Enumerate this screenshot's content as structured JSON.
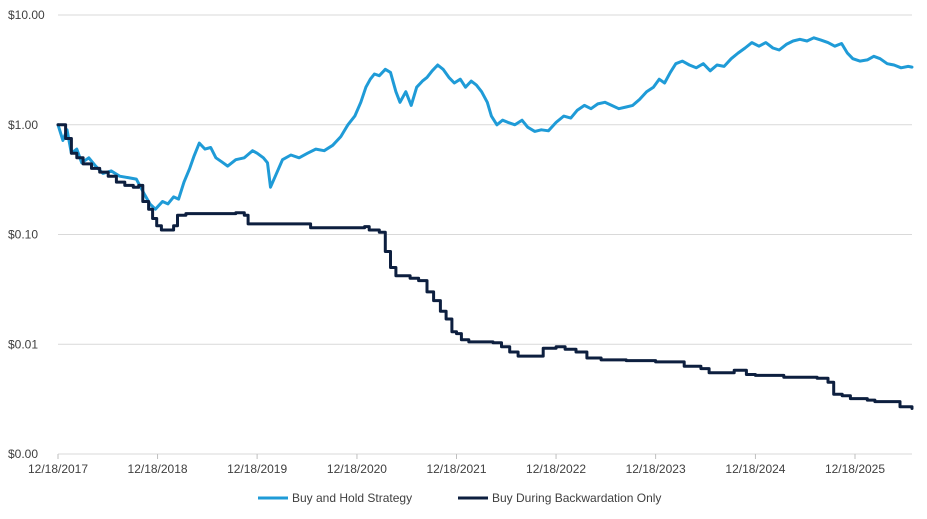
{
  "chart_data": {
    "type": "line",
    "yscale": "log",
    "ylim": [
      0.001,
      10
    ],
    "xlim": [
      "2017-12-18",
      "2026-07-15"
    ],
    "grid": true,
    "legend_position": "bottom-center",
    "y_ticks": [
      {
        "value": 10,
        "label": "$10.00"
      },
      {
        "value": 1,
        "label": "$1.00"
      },
      {
        "value": 0.1,
        "label": "$0.10"
      },
      {
        "value": 0.01,
        "label": "$0.01"
      },
      {
        "value": 0.001,
        "label": "$0.00"
      }
    ],
    "x_ticks": [
      {
        "value": "2017-12-18",
        "label": "12/18/2017"
      },
      {
        "value": "2018-12-18",
        "label": "12/18/2018"
      },
      {
        "value": "2019-12-18",
        "label": "12/18/2019"
      },
      {
        "value": "2020-12-18",
        "label": "12/18/2020"
      },
      {
        "value": "2021-12-18",
        "label": "12/18/2021"
      },
      {
        "value": "2022-12-18",
        "label": "12/18/2022"
      },
      {
        "value": "2023-12-18",
        "label": "12/18/2023"
      },
      {
        "value": "2024-12-18",
        "label": "12/18/2024"
      },
      {
        "value": "2025-12-18",
        "label": "12/18/2025"
      }
    ],
    "series": [
      {
        "name": "Buy and Hold Strategy",
        "color": "#1f9bd7",
        "points": [
          [
            "2017-12-18",
            1.0
          ],
          [
            "2018-01-05",
            0.72
          ],
          [
            "2018-01-20",
            0.9
          ],
          [
            "2018-02-05",
            0.55
          ],
          [
            "2018-02-25",
            0.6
          ],
          [
            "2018-03-15",
            0.45
          ],
          [
            "2018-04-10",
            0.5
          ],
          [
            "2018-05-05",
            0.42
          ],
          [
            "2018-06-01",
            0.36
          ],
          [
            "2018-07-01",
            0.38
          ],
          [
            "2018-08-01",
            0.34
          ],
          [
            "2018-09-01",
            0.33
          ],
          [
            "2018-10-01",
            0.32
          ],
          [
            "2018-11-01",
            0.23
          ],
          [
            "2018-11-20",
            0.19
          ],
          [
            "2018-12-10",
            0.17
          ],
          [
            "2019-01-05",
            0.2
          ],
          [
            "2019-01-25",
            0.19
          ],
          [
            "2019-02-15",
            0.22
          ],
          [
            "2019-03-05",
            0.21
          ],
          [
            "2019-03-25",
            0.3
          ],
          [
            "2019-04-15",
            0.4
          ],
          [
            "2019-05-01",
            0.52
          ],
          [
            "2019-05-20",
            0.68
          ],
          [
            "2019-06-10",
            0.6
          ],
          [
            "2019-07-01",
            0.62
          ],
          [
            "2019-07-20",
            0.5
          ],
          [
            "2019-08-10",
            0.46
          ],
          [
            "2019-09-01",
            0.42
          ],
          [
            "2019-10-01",
            0.48
          ],
          [
            "2019-11-01",
            0.5
          ],
          [
            "2019-12-01",
            0.58
          ],
          [
            "2019-12-18",
            0.55
          ],
          [
            "2020-01-10",
            0.5
          ],
          [
            "2020-01-25",
            0.45
          ],
          [
            "2020-02-05",
            0.27
          ],
          [
            "2020-02-25",
            0.35
          ],
          [
            "2020-03-20",
            0.48
          ],
          [
            "2020-04-20",
            0.53
          ],
          [
            "2020-05-20",
            0.5
          ],
          [
            "2020-06-20",
            0.55
          ],
          [
            "2020-07-20",
            0.6
          ],
          [
            "2020-08-20",
            0.58
          ],
          [
            "2020-09-20",
            0.65
          ],
          [
            "2020-10-20",
            0.78
          ],
          [
            "2020-11-15",
            1.0
          ],
          [
            "2020-12-10",
            1.2
          ],
          [
            "2021-01-01",
            1.6
          ],
          [
            "2021-01-20",
            2.2
          ],
          [
            "2021-02-05",
            2.6
          ],
          [
            "2021-02-20",
            2.9
          ],
          [
            "2021-03-10",
            2.8
          ],
          [
            "2021-04-01",
            3.2
          ],
          [
            "2021-04-20",
            3.0
          ],
          [
            "2021-05-10",
            2.0
          ],
          [
            "2021-05-25",
            1.6
          ],
          [
            "2021-06-15",
            2.0
          ],
          [
            "2021-07-05",
            1.5
          ],
          [
            "2021-07-25",
            2.2
          ],
          [
            "2021-08-15",
            2.5
          ],
          [
            "2021-09-01",
            2.7
          ],
          [
            "2021-09-20",
            3.1
          ],
          [
            "2021-10-10",
            3.5
          ],
          [
            "2021-10-30",
            3.2
          ],
          [
            "2021-11-20",
            2.7
          ],
          [
            "2021-12-10",
            2.4
          ],
          [
            "2022-01-01",
            2.6
          ],
          [
            "2022-01-20",
            2.2
          ],
          [
            "2022-02-10",
            2.5
          ],
          [
            "2022-03-01",
            2.3
          ],
          [
            "2022-03-20",
            2.0
          ],
          [
            "2022-04-10",
            1.6
          ],
          [
            "2022-04-25",
            1.2
          ],
          [
            "2022-05-15",
            1.0
          ],
          [
            "2022-06-05",
            1.1
          ],
          [
            "2022-06-25",
            1.05
          ],
          [
            "2022-07-20",
            1.0
          ],
          [
            "2022-08-15",
            1.1
          ],
          [
            "2022-09-05",
            0.95
          ],
          [
            "2022-10-01",
            0.87
          ],
          [
            "2022-10-25",
            0.9
          ],
          [
            "2022-11-20",
            0.88
          ],
          [
            "2022-12-18",
            1.05
          ],
          [
            "2023-01-15",
            1.2
          ],
          [
            "2023-02-10",
            1.15
          ],
          [
            "2023-03-05",
            1.35
          ],
          [
            "2023-04-01",
            1.5
          ],
          [
            "2023-04-25",
            1.4
          ],
          [
            "2023-05-20",
            1.55
          ],
          [
            "2023-06-15",
            1.6
          ],
          [
            "2023-07-10",
            1.5
          ],
          [
            "2023-08-05",
            1.4
          ],
          [
            "2023-09-01",
            1.45
          ],
          [
            "2023-09-25",
            1.5
          ],
          [
            "2023-10-20",
            1.7
          ],
          [
            "2023-11-15",
            2.0
          ],
          [
            "2023-12-10",
            2.2
          ],
          [
            "2023-12-31",
            2.6
          ],
          [
            "2024-01-20",
            2.4
          ],
          [
            "2024-02-10",
            3.0
          ],
          [
            "2024-03-01",
            3.6
          ],
          [
            "2024-03-25",
            3.8
          ],
          [
            "2024-04-20",
            3.5
          ],
          [
            "2024-05-15",
            3.3
          ],
          [
            "2024-06-10",
            3.6
          ],
          [
            "2024-07-05",
            3.1
          ],
          [
            "2024-07-30",
            3.5
          ],
          [
            "2024-08-25",
            3.4
          ],
          [
            "2024-09-20",
            4.0
          ],
          [
            "2024-10-15",
            4.5
          ],
          [
            "2024-11-10",
            5.0
          ],
          [
            "2024-12-05",
            5.6
          ],
          [
            "2024-12-31",
            5.2
          ],
          [
            "2025-01-25",
            5.6
          ],
          [
            "2025-02-20",
            5.0
          ],
          [
            "2025-03-15",
            4.8
          ],
          [
            "2025-04-10",
            5.4
          ],
          [
            "2025-05-05",
            5.8
          ],
          [
            "2025-05-30",
            6.0
          ],
          [
            "2025-06-25",
            5.8
          ],
          [
            "2025-07-20",
            6.2
          ],
          [
            "2025-08-15",
            5.9
          ],
          [
            "2025-09-10",
            5.6
          ],
          [
            "2025-10-05",
            5.2
          ],
          [
            "2025-10-30",
            5.5
          ],
          [
            "2025-11-20",
            4.5
          ],
          [
            "2025-12-10",
            4.0
          ],
          [
            "2026-01-05",
            3.8
          ],
          [
            "2026-02-01",
            3.9
          ],
          [
            "2026-02-25",
            4.2
          ],
          [
            "2026-03-20",
            4.0
          ],
          [
            "2026-04-15",
            3.6
          ],
          [
            "2026-05-10",
            3.5
          ],
          [
            "2026-06-05",
            3.3
          ],
          [
            "2026-07-01",
            3.4
          ],
          [
            "2026-07-15",
            3.35
          ]
        ]
      },
      {
        "name": "Buy During Backwardation Only",
        "color": "#0d1f3f",
        "step": true,
        "points": [
          [
            "2017-12-18",
            1.0
          ],
          [
            "2018-01-15",
            0.75
          ],
          [
            "2018-02-05",
            0.55
          ],
          [
            "2018-02-25",
            0.5
          ],
          [
            "2018-03-20",
            0.44
          ],
          [
            "2018-04-20",
            0.4
          ],
          [
            "2018-05-20",
            0.37
          ],
          [
            "2018-06-20",
            0.34
          ],
          [
            "2018-07-20",
            0.3
          ],
          [
            "2018-08-20",
            0.28
          ],
          [
            "2018-09-20",
            0.27
          ],
          [
            "2018-10-10",
            0.28
          ],
          [
            "2018-10-25",
            0.2
          ],
          [
            "2018-11-15",
            0.17
          ],
          [
            "2018-11-30",
            0.14
          ],
          [
            "2018-12-15",
            0.12
          ],
          [
            "2019-01-01",
            0.11
          ],
          [
            "2019-01-25",
            0.11
          ],
          [
            "2019-02-15",
            0.12
          ],
          [
            "2019-03-01",
            0.15
          ],
          [
            "2019-04-01",
            0.155
          ],
          [
            "2019-07-01",
            0.155
          ],
          [
            "2019-10-01",
            0.158
          ],
          [
            "2019-11-01",
            0.15
          ],
          [
            "2019-11-15",
            0.125
          ],
          [
            "2020-06-01",
            0.125
          ],
          [
            "2020-07-01",
            0.115
          ],
          [
            "2020-12-18",
            0.115
          ],
          [
            "2021-01-15",
            0.118
          ],
          [
            "2021-02-01",
            0.11
          ],
          [
            "2021-03-10",
            0.105
          ],
          [
            "2021-04-01",
            0.07
          ],
          [
            "2021-04-20",
            0.05
          ],
          [
            "2021-05-10",
            0.042
          ],
          [
            "2021-06-01",
            0.042
          ],
          [
            "2021-07-01",
            0.04
          ],
          [
            "2021-08-01",
            0.038
          ],
          [
            "2021-09-01",
            0.03
          ],
          [
            "2021-09-25",
            0.025
          ],
          [
            "2021-10-20",
            0.02
          ],
          [
            "2021-11-10",
            0.017
          ],
          [
            "2021-12-01",
            0.013
          ],
          [
            "2021-12-18",
            0.0125
          ],
          [
            "2022-01-05",
            0.011
          ],
          [
            "2022-02-01",
            0.0105
          ],
          [
            "2022-05-01",
            0.0103
          ],
          [
            "2022-06-01",
            0.0095
          ],
          [
            "2022-07-01",
            0.0085
          ],
          [
            "2022-08-01",
            0.0078
          ],
          [
            "2022-10-01",
            0.0078
          ],
          [
            "2022-11-01",
            0.0092
          ],
          [
            "2022-12-18",
            0.0095
          ],
          [
            "2023-01-20",
            0.009
          ],
          [
            "2023-03-01",
            0.0085
          ],
          [
            "2023-04-10",
            0.0075
          ],
          [
            "2023-06-01",
            0.0072
          ],
          [
            "2023-09-01",
            0.0071
          ],
          [
            "2023-12-18",
            0.0069
          ],
          [
            "2024-03-01",
            0.0069
          ],
          [
            "2024-04-01",
            0.0063
          ],
          [
            "2024-06-01",
            0.006
          ],
          [
            "2024-07-01",
            0.0055
          ],
          [
            "2024-09-01",
            0.0055
          ],
          [
            "2024-10-01",
            0.0058
          ],
          [
            "2024-11-15",
            0.0053
          ],
          [
            "2024-12-18",
            0.0052
          ],
          [
            "2025-03-01",
            0.0052
          ],
          [
            "2025-04-01",
            0.005
          ],
          [
            "2025-07-01",
            0.005
          ],
          [
            "2025-08-01",
            0.0049
          ],
          [
            "2025-09-10",
            0.0045
          ],
          [
            "2025-10-01",
            0.0035
          ],
          [
            "2025-11-01",
            0.0034
          ],
          [
            "2025-12-01",
            0.0032
          ],
          [
            "2026-02-01",
            0.0031
          ],
          [
            "2026-03-01",
            0.003
          ],
          [
            "2026-05-01",
            0.003
          ],
          [
            "2026-06-01",
            0.0027
          ],
          [
            "2026-07-15",
            0.0026
          ]
        ]
      }
    ]
  }
}
